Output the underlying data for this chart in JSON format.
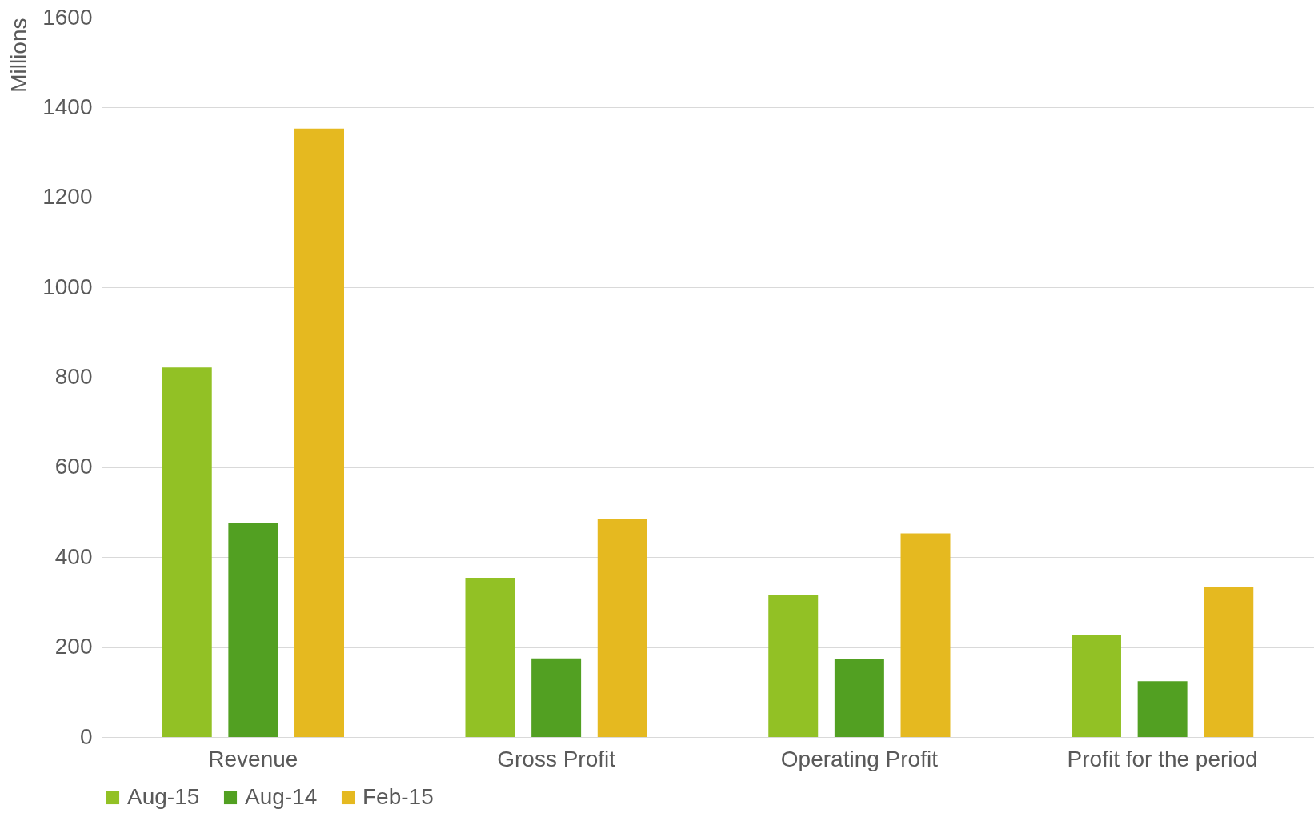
{
  "chart_data": {
    "type": "bar",
    "ylabel": "Millions",
    "categories": [
      "Revenue",
      "Gross Profit",
      "Operating Profit",
      "Profit for the period"
    ],
    "series": [
      {
        "name": "Aug-15",
        "color": "#92c125",
        "values": [
          822,
          354,
          316,
          228
        ]
      },
      {
        "name": "Aug-14",
        "color": "#52a022",
        "values": [
          477,
          175,
          173,
          124
        ]
      },
      {
        "name": "Feb-15",
        "color": "#e5b920",
        "values": [
          1353,
          485,
          453,
          333
        ]
      }
    ],
    "ylim": [
      0,
      1600
    ],
    "yticks": [
      0,
      200,
      400,
      600,
      800,
      1000,
      1200,
      1400,
      1600
    ],
    "grid": "y",
    "legend": "bottom"
  }
}
